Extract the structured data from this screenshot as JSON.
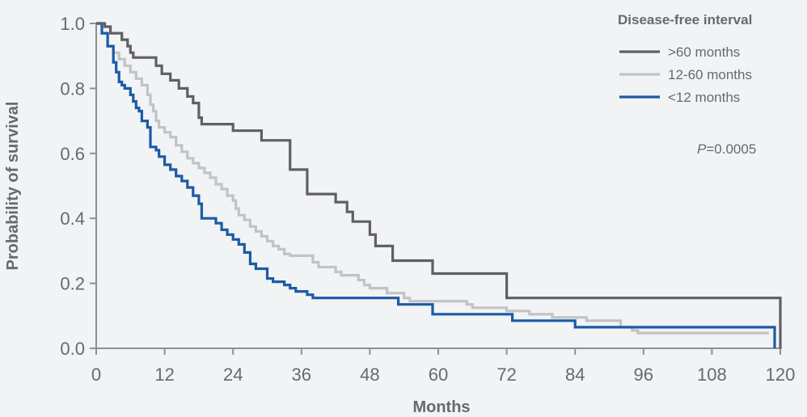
{
  "chart_data": {
    "type": "line",
    "step": true,
    "xlabel": "Months",
    "ylabel": "Probability of survival",
    "xlim": [
      0,
      120
    ],
    "ylim": [
      0,
      1.0
    ],
    "x_ticks": [
      "0",
      "12",
      "24",
      "36",
      "48",
      "60",
      "72",
      "84",
      "96",
      "108",
      "120"
    ],
    "y_ticks": [
      "0.0",
      "0.2",
      "0.4",
      "0.6",
      "0.8",
      "1.0"
    ],
    "grid": false,
    "legend": {
      "title": "Disease-free interval",
      "placement": "top-right"
    },
    "annotation": {
      "italic": "P",
      "rest": "=0.0005"
    },
    "series": [
      {
        "name": ">60 months",
        "color": "#5f6064",
        "points": [
          [
            0,
            1.0
          ],
          [
            1.5,
            0.99
          ],
          [
            2.5,
            0.97
          ],
          [
            4.5,
            0.95
          ],
          [
            5.5,
            0.93
          ],
          [
            6,
            0.91
          ],
          [
            6.5,
            0.895
          ],
          [
            10.5,
            0.87
          ],
          [
            11.5,
            0.845
          ],
          [
            13,
            0.825
          ],
          [
            14.5,
            0.8
          ],
          [
            16,
            0.775
          ],
          [
            17,
            0.755
          ],
          [
            18,
            0.71
          ],
          [
            18.5,
            0.69
          ],
          [
            24,
            0.67
          ],
          [
            29,
            0.64
          ],
          [
            34,
            0.55
          ],
          [
            37,
            0.475
          ],
          [
            42,
            0.45
          ],
          [
            44,
            0.42
          ],
          [
            45,
            0.39
          ],
          [
            48,
            0.35
          ],
          [
            49,
            0.315
          ],
          [
            52,
            0.27
          ],
          [
            59,
            0.23
          ],
          [
            72,
            0.155
          ],
          [
            120,
            0.0
          ]
        ]
      },
      {
        "name": "12-60 months",
        "color": "#c1c3c6",
        "points": [
          [
            0,
            1.0
          ],
          [
            1,
            0.97
          ],
          [
            2,
            0.93
          ],
          [
            3,
            0.91
          ],
          [
            4,
            0.89
          ],
          [
            5,
            0.87
          ],
          [
            6,
            0.85
          ],
          [
            7,
            0.83
          ],
          [
            8,
            0.81
          ],
          [
            9,
            0.78
          ],
          [
            9.5,
            0.75
          ],
          [
            10,
            0.73
          ],
          [
            10.5,
            0.7
          ],
          [
            11,
            0.68
          ],
          [
            12,
            0.665
          ],
          [
            13,
            0.65
          ],
          [
            14,
            0.625
          ],
          [
            15,
            0.605
          ],
          [
            16,
            0.585
          ],
          [
            17,
            0.57
          ],
          [
            18,
            0.555
          ],
          [
            19,
            0.54
          ],
          [
            20,
            0.525
          ],
          [
            21,
            0.505
          ],
          [
            22,
            0.49
          ],
          [
            23,
            0.47
          ],
          [
            24,
            0.455
          ],
          [
            24.5,
            0.43
          ],
          [
            25,
            0.41
          ],
          [
            26,
            0.395
          ],
          [
            27,
            0.375
          ],
          [
            28,
            0.36
          ],
          [
            29,
            0.345
          ],
          [
            30,
            0.33
          ],
          [
            31,
            0.315
          ],
          [
            32,
            0.305
          ],
          [
            33,
            0.29
          ],
          [
            34,
            0.285
          ],
          [
            38,
            0.265
          ],
          [
            39,
            0.25
          ],
          [
            42,
            0.235
          ],
          [
            43,
            0.225
          ],
          [
            46,
            0.21
          ],
          [
            47,
            0.195
          ],
          [
            48,
            0.185
          ],
          [
            51,
            0.17
          ],
          [
            54,
            0.155
          ],
          [
            55,
            0.145
          ],
          [
            65,
            0.135
          ],
          [
            66,
            0.125
          ],
          [
            72,
            0.115
          ],
          [
            76,
            0.105
          ],
          [
            80,
            0.095
          ],
          [
            86,
            0.085
          ],
          [
            92,
            0.065
          ],
          [
            94,
            0.055
          ],
          [
            95,
            0.047
          ],
          [
            118,
            0.047
          ]
        ]
      },
      {
        "name": "<12 months",
        "color": "#1c5aa6",
        "points": [
          [
            0,
            1.0
          ],
          [
            1,
            0.97
          ],
          [
            2,
            0.93
          ],
          [
            3,
            0.88
          ],
          [
            3.5,
            0.85
          ],
          [
            4,
            0.82
          ],
          [
            4.5,
            0.81
          ],
          [
            5,
            0.8
          ],
          [
            6,
            0.78
          ],
          [
            6.5,
            0.76
          ],
          [
            7,
            0.74
          ],
          [
            7.5,
            0.73
          ],
          [
            8,
            0.7
          ],
          [
            9,
            0.68
          ],
          [
            9.5,
            0.62
          ],
          [
            10.5,
            0.61
          ],
          [
            11,
            0.59
          ],
          [
            12,
            0.565
          ],
          [
            13,
            0.55
          ],
          [
            14,
            0.53
          ],
          [
            15,
            0.515
          ],
          [
            16,
            0.495
          ],
          [
            17,
            0.47
          ],
          [
            18,
            0.445
          ],
          [
            18.5,
            0.4
          ],
          [
            21,
            0.385
          ],
          [
            22,
            0.365
          ],
          [
            23,
            0.35
          ],
          [
            24,
            0.335
          ],
          [
            25,
            0.32
          ],
          [
            26,
            0.295
          ],
          [
            27,
            0.26
          ],
          [
            28,
            0.245
          ],
          [
            30,
            0.215
          ],
          [
            31,
            0.205
          ],
          [
            33,
            0.195
          ],
          [
            34,
            0.185
          ],
          [
            35,
            0.175
          ],
          [
            37,
            0.165
          ],
          [
            38,
            0.155
          ],
          [
            53,
            0.135
          ],
          [
            59,
            0.105
          ],
          [
            73,
            0.085
          ],
          [
            84,
            0.065
          ],
          [
            119,
            0.0
          ]
        ]
      }
    ]
  }
}
